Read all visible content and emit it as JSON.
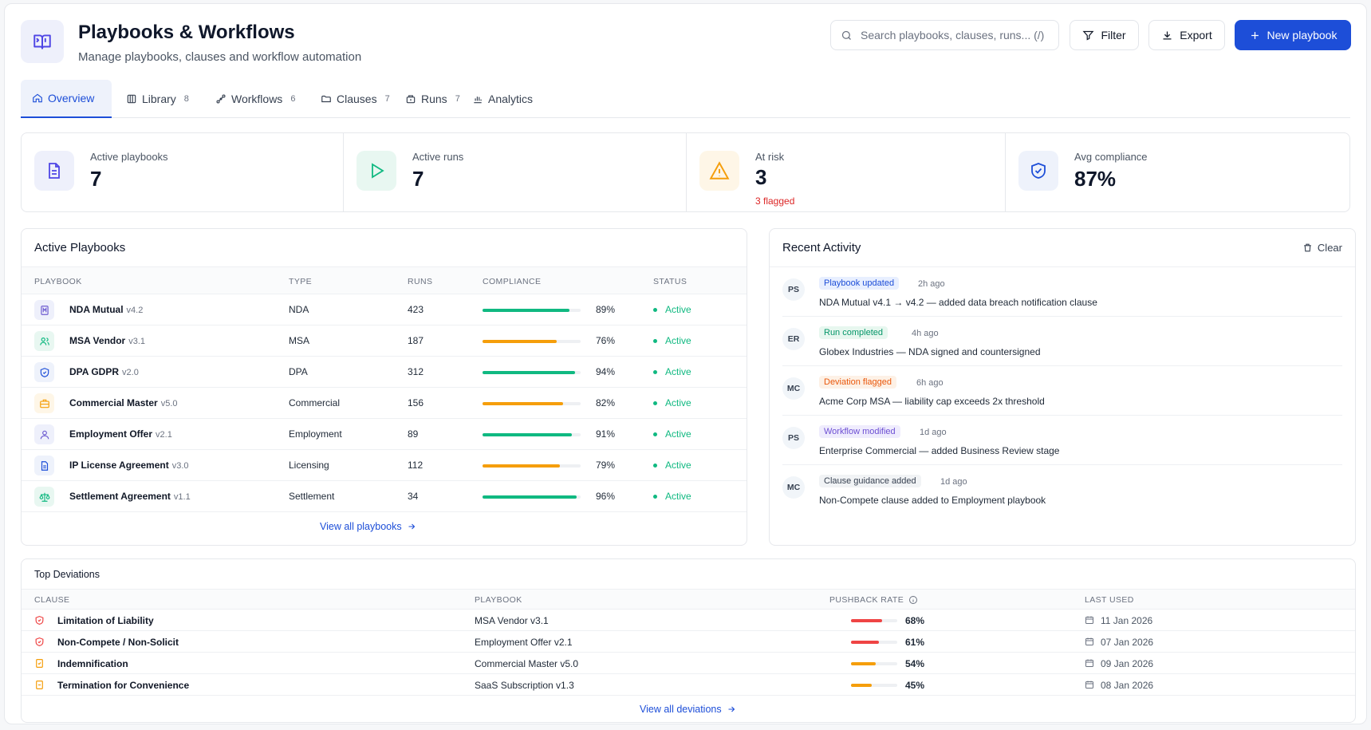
{
  "header": {
    "title": "Playbooks & Workflows",
    "subtitle": "Manage playbooks, clauses and workflow automation",
    "search_placeholder": "Search playbooks, clauses, runs... (/)",
    "filter_label": "Filter",
    "export_label": "Export",
    "new_label": "New playbook"
  },
  "tabs": [
    {
      "label": "Overview",
      "count": ""
    },
    {
      "label": "Library",
      "count": "8"
    },
    {
      "label": "Workflows",
      "count": "6"
    },
    {
      "label": "Clauses",
      "count": "7"
    },
    {
      "label": "Runs",
      "count": "7"
    },
    {
      "label": "Analytics",
      "count": ""
    }
  ],
  "stats": [
    {
      "label": "Active playbooks",
      "value": "7",
      "sub": ""
    },
    {
      "label": "Active runs",
      "value": "7",
      "sub": ""
    },
    {
      "label": "At risk",
      "value": "3",
      "sub": "3 flagged"
    },
    {
      "label": "Avg compliance",
      "value": "87%",
      "sub": ""
    }
  ],
  "playbooks": {
    "title": "Active Playbooks",
    "columns": [
      "PLAYBOOK",
      "TYPE",
      "RUNS",
      "COMPLIANCE",
      "STATUS"
    ],
    "rows": [
      {
        "name": "NDA Mutual",
        "version": "v4.2",
        "type": "NDA",
        "runs": "423",
        "compliance": "89%",
        "status": "Active"
      },
      {
        "name": "MSA Vendor",
        "version": "v3.1",
        "type": "MSA",
        "runs": "187",
        "compliance": "76%",
        "status": "Active"
      },
      {
        "name": "DPA GDPR",
        "version": "v2.0",
        "type": "DPA",
        "runs": "312",
        "compliance": "94%",
        "status": "Active"
      },
      {
        "name": "Commercial Master",
        "version": "v5.0",
        "type": "Commercial",
        "runs": "156",
        "compliance": "82%",
        "status": "Active"
      },
      {
        "name": "Employment Offer",
        "version": "v2.1",
        "type": "Employment",
        "runs": "89",
        "compliance": "91%",
        "status": "Active"
      },
      {
        "name": "IP License Agreement",
        "version": "v3.0",
        "type": "Licensing",
        "runs": "112",
        "compliance": "79%",
        "status": "Active"
      },
      {
        "name": "Settlement Agreement",
        "version": "v1.1",
        "type": "Settlement",
        "runs": "34",
        "compliance": "96%",
        "status": "Active"
      }
    ],
    "view_all": "View all playbooks"
  },
  "activity": {
    "title": "Recent Activity",
    "clear_label": "Clear",
    "items": [
      {
        "initials": "PS",
        "badge": "Playbook updated",
        "time": "2h ago",
        "text": "NDA Mutual v4.1 → v4.2 — added data breach notification clause"
      },
      {
        "initials": "ER",
        "badge": "Run completed",
        "time": "4h ago",
        "text": "Globex Industries — NDA signed and countersigned"
      },
      {
        "initials": "MC",
        "badge": "Deviation flagged",
        "time": "6h ago",
        "text": "Acme Corp MSA — liability cap exceeds 2x threshold"
      },
      {
        "initials": "PS",
        "badge": "Workflow modified",
        "time": "1d ago",
        "text": "Enterprise Commercial — added Business Review stage"
      },
      {
        "initials": "MC",
        "badge": "Clause guidance added",
        "time": "1d ago",
        "text": "Non-Compete clause added to Employment playbook"
      }
    ]
  },
  "deviations": {
    "title": "Top Deviations",
    "columns": [
      "CLAUSE",
      "PLAYBOOK",
      "PUSHBACK RATE",
      "LAST USED"
    ],
    "rows": [
      {
        "clause": "Limitation of Liability",
        "playbook": "MSA Vendor v3.1",
        "rate": "68%",
        "last_used": "11 Jan 2026"
      },
      {
        "clause": "Non-Compete / Non-Solicit",
        "playbook": "Employment Offer v2.1",
        "rate": "61%",
        "last_used": "07 Jan 2026"
      },
      {
        "clause": "Indemnification",
        "playbook": "Commercial Master v5.0",
        "rate": "54%",
        "last_used": "09 Jan 2026"
      },
      {
        "clause": "Termination for Convenience",
        "playbook": "SaaS Subscription v1.3",
        "rate": "45%",
        "last_used": "08 Jan 2026"
      }
    ],
    "view_all": "View all deviations"
  },
  "colors": {
    "accent": "#1d4ed8",
    "success": "#10b981",
    "warning": "#f59e0b",
    "danger": "#ef4444"
  }
}
